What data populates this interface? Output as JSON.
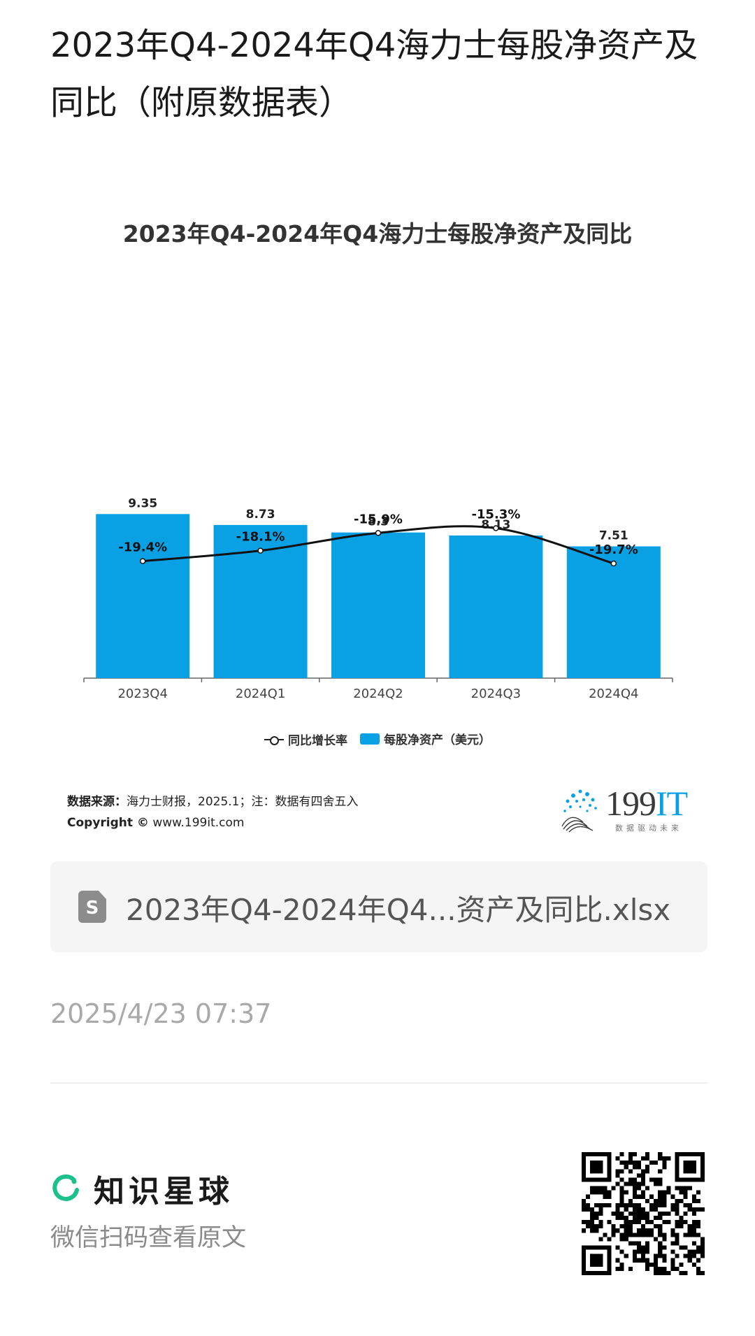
{
  "header": {
    "title": "2023年Q4-2024年Q4海力士每股净资产及同比（附原数据表）"
  },
  "colors": {
    "bar": "#0aa0e4",
    "line": "#111111",
    "brand_green": "#1cc08a"
  },
  "chart_data": {
    "type": "bar",
    "title": "2023年Q4-2024年Q4海力士每股净资产及同比",
    "categories": [
      "2023Q4",
      "2024Q1",
      "2024Q2",
      "2024Q3",
      "2024Q4"
    ],
    "series": [
      {
        "name": "每股净资产（美元）",
        "type": "bar",
        "values": [
          9.35,
          8.73,
          8.3,
          8.13,
          7.51
        ],
        "labels": [
          "9.35",
          "8.73",
          "8.3",
          "8.13",
          "7.51"
        ]
      },
      {
        "name": "同比增长率",
        "type": "line",
        "values": [
          -19.4,
          -18.1,
          -15.9,
          -15.3,
          -19.7
        ],
        "labels": [
          "-19.4%",
          "-18.1%",
          "-15.9%",
          "-15.3%",
          "-19.7%"
        ]
      }
    ],
    "legend": [
      "同比增长率",
      "每股净资产（美元）"
    ],
    "legend_position": "bottom",
    "grid": false
  },
  "source": {
    "label": "数据来源：",
    "text": "海力士财报，2025.1；注：数据有四舍五入",
    "copyright_label": "Copyright ©",
    "copyright_site": "www.199it.com"
  },
  "logo": {
    "number": "199",
    "it": "IT",
    "tagline": "数据驱动未来"
  },
  "file": {
    "icon": "spreadsheet-file-icon",
    "icon_letter": "S",
    "name": "2023年Q4-2024年Q4...资产及同比.xlsx"
  },
  "timestamp": "2025/4/23 07:37",
  "footer": {
    "brand": "知识星球",
    "subtitle": "微信扫码查看原文",
    "qr": "qr-code"
  }
}
